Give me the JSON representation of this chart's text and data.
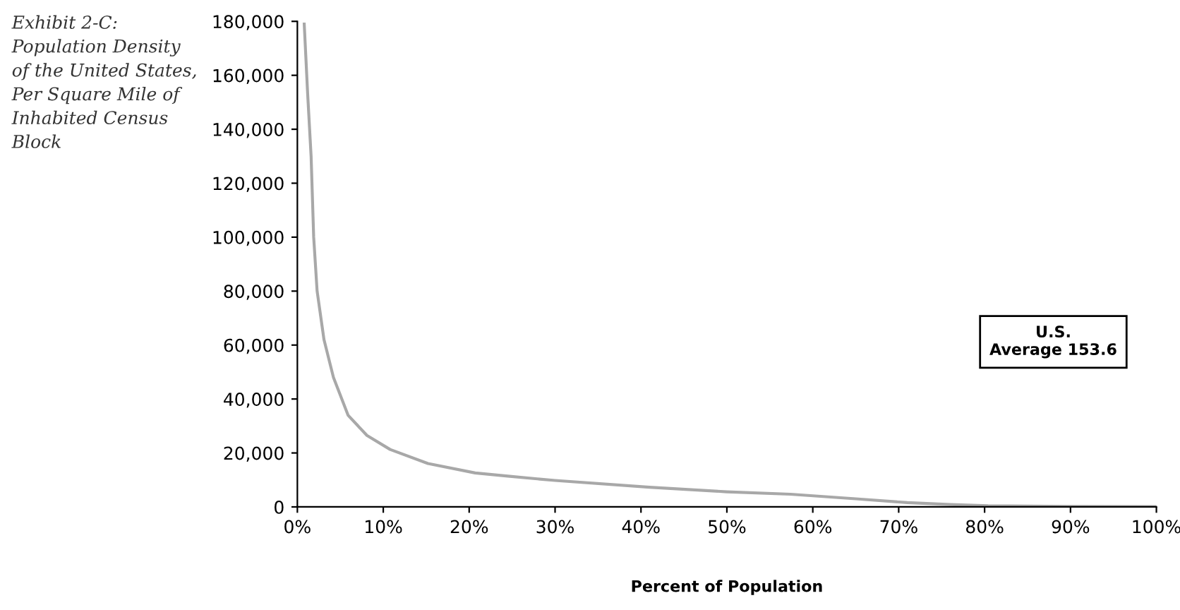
{
  "chart_data": {
    "type": "line",
    "title": "Exhibit 2-C:\nPopulation Density\nof the United States,\nPer Square Mile of\nInhabited Census\nBlock",
    "xlabel": "Percent of Population",
    "x": [
      0.8,
      1.2,
      1.6,
      1.9,
      2.3,
      3.1,
      4.2,
      5.9,
      8.1,
      10.8,
      15.2,
      20.7,
      24.5,
      30,
      41,
      50,
      57.4,
      65,
      71,
      76,
      80.4,
      90,
      100
    ],
    "series": [
      {
        "color": "#a8a8a8",
        "values": [
          179000,
          153000,
          130000,
          100000,
          80000,
          62000,
          48000,
          34000,
          26500,
          21300,
          16100,
          12600,
          11400,
          9800,
          7300,
          5600,
          4700,
          3000,
          1600,
          900,
          400,
          200,
          100
        ]
      }
    ],
    "xlim": [
      0,
      100
    ],
    "ylim": [
      0,
      180000
    ],
    "xticks": [
      {
        "value": 0,
        "label": "0%"
      },
      {
        "value": 10,
        "label": "10%"
      },
      {
        "value": 20,
        "label": "20%"
      },
      {
        "value": 30,
        "label": "30%"
      },
      {
        "value": 40,
        "label": "40%"
      },
      {
        "value": 50,
        "label": "50%"
      },
      {
        "value": 60,
        "label": "60%"
      },
      {
        "value": 70,
        "label": "70%"
      },
      {
        "value": 80,
        "label": "80%"
      },
      {
        "value": 90,
        "label": "90%"
      },
      {
        "value": 100,
        "label": "100%"
      }
    ],
    "yticks": [
      0,
      {
        "value": 20000,
        "label": "20,000"
      },
      {
        "value": 40000,
        "label": "40,000"
      },
      {
        "value": 60000,
        "label": "60,000"
      },
      {
        "value": 80000,
        "label": "80,000"
      },
      {
        "value": 100000,
        "label": "100,000"
      },
      {
        "value": 120000,
        "label": "120,000"
      },
      {
        "value": 140000,
        "label": "140,000"
      },
      {
        "value": 160000,
        "label": "160,000"
      },
      {
        "value": 180000,
        "label": "180,000"
      }
    ],
    "annotations": [
      "U.S.\nAverage 153.6"
    ],
    "grid": false,
    "legend": false,
    "line_style": "solid"
  }
}
